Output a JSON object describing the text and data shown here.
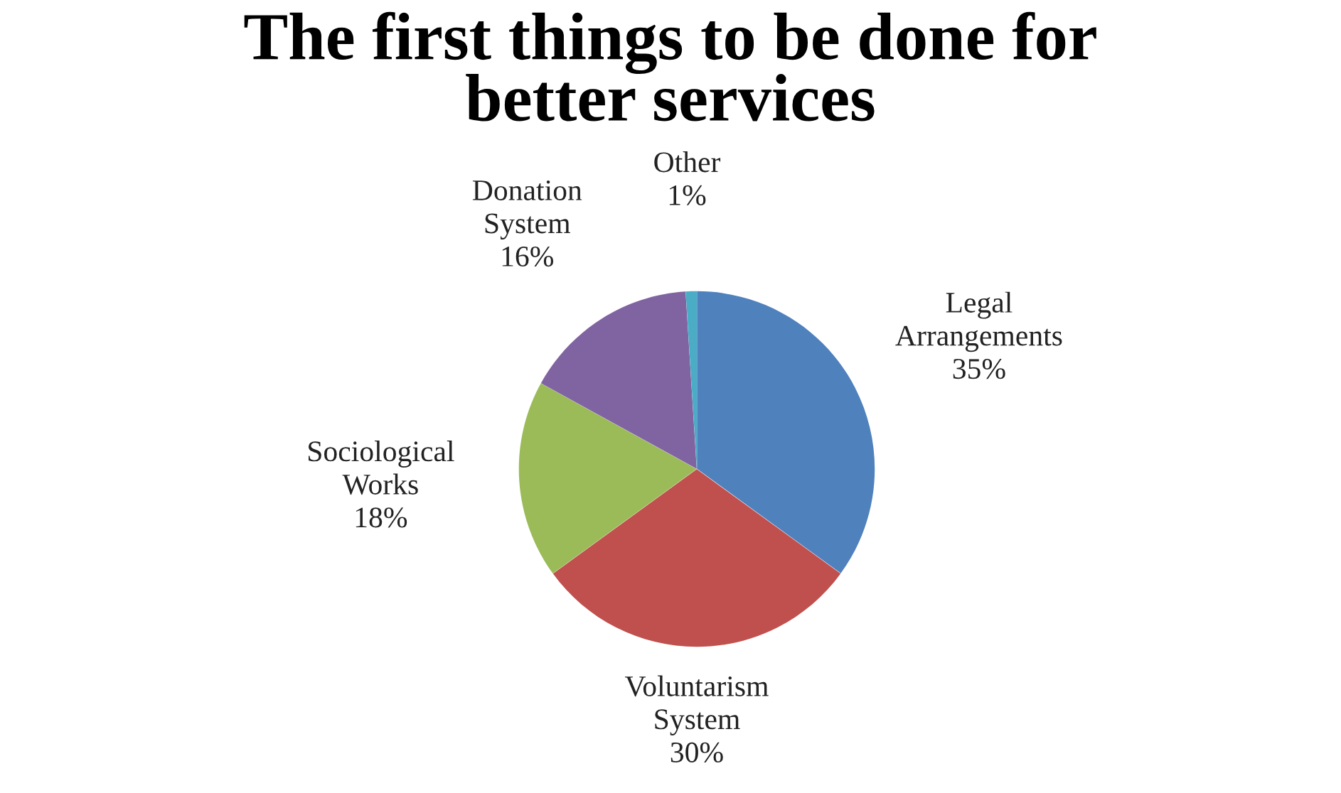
{
  "chart_data": {
    "type": "pie",
    "title": "The first things to be done for better services",
    "categories": [
      "Legal Arrangements",
      "Voluntarism System",
      "Sociological Works",
      "Donation System",
      "Other"
    ],
    "values": [
      35,
      30,
      18,
      16,
      1
    ],
    "value_labels": [
      "35%",
      "30%",
      "18%",
      "16%",
      "1%"
    ],
    "colors": [
      "#4f81bd",
      "#c0504d",
      "#9bbb59",
      "#8064a2",
      "#4bacc6"
    ],
    "legend": false
  }
}
